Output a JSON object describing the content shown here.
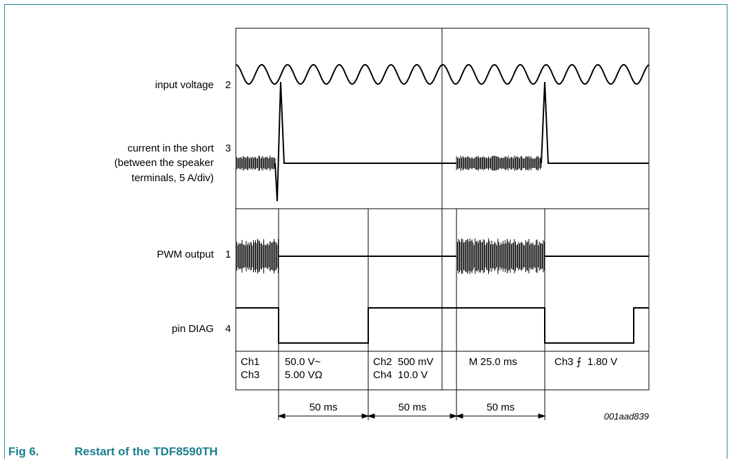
{
  "channels": [
    {
      "label": "input voltage",
      "number": "2"
    },
    {
      "label_lines": [
        "current in the short",
        "(between the speaker",
        "terminals, 5 A/div)"
      ],
      "number": "3"
    },
    {
      "label": "PWM output",
      "number": "1"
    },
    {
      "label": "pin DIAG",
      "number": "4"
    }
  ],
  "settings": {
    "col1": [
      "Ch1",
      "Ch3"
    ],
    "col2": [
      "50.0 V~",
      "5.00 VΩ"
    ],
    "col3": [
      "Ch2  500 mV",
      "Ch4  10.0 V"
    ],
    "col4": [
      "M 25.0 ms"
    ],
    "col5": [
      "Ch3 ⨍  1.80 V"
    ]
  },
  "timing": [
    "50 ms",
    "50 ms",
    "50 ms"
  ],
  "figure_id": "001aad839",
  "caption": {
    "number": "Fig 6.",
    "title": "Restart of the TDF8590TH"
  },
  "colors": {
    "frame": "#1e8fa3",
    "caption": "#1a7f8e",
    "trace": "#000000"
  }
}
